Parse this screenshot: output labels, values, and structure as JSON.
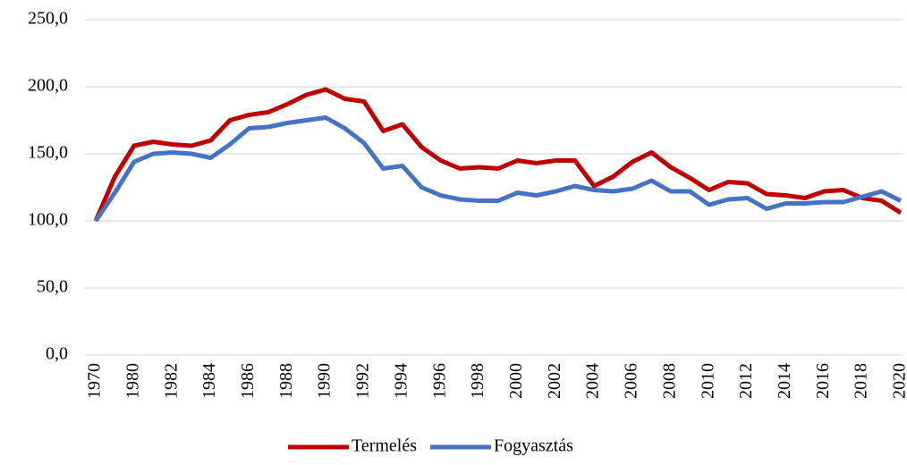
{
  "chart_data": {
    "type": "line",
    "categories": [
      "1970",
      null,
      "1980",
      null,
      "1982",
      null,
      "1984",
      null,
      "1986",
      null,
      "1988",
      null,
      "1990",
      null,
      "1992",
      null,
      "1994",
      null,
      "1996",
      null,
      "1998",
      null,
      "2000",
      null,
      "2002",
      null,
      "2004",
      null,
      "2006",
      null,
      "2008",
      null,
      "2010",
      null,
      "2012",
      null,
      "2014",
      null,
      "2016",
      null,
      "2018",
      null,
      "2020"
    ],
    "series": [
      {
        "name": "Termelés",
        "color": "#c00000",
        "values": [
          100,
          133,
          156,
          159,
          157,
          156,
          160,
          175,
          179,
          181,
          187,
          194,
          198,
          191,
          189,
          167,
          172,
          155,
          145,
          139,
          140,
          139,
          145,
          143,
          145,
          145,
          126,
          133,
          144,
          151,
          140,
          132,
          123,
          129,
          128,
          120,
          119,
          117,
          122,
          123,
          117,
          115,
          106
        ]
      },
      {
        "name": "Fogyasztás",
        "color": "#4472c4",
        "values": [
          100,
          121,
          144,
          150,
          151,
          150,
          147,
          157,
          169,
          170,
          173,
          175,
          177,
          169,
          158,
          139,
          141,
          125,
          119,
          116,
          115,
          115,
          121,
          119,
          122,
          126,
          123,
          122,
          124,
          130,
          122,
          122,
          112,
          116,
          117,
          109,
          113,
          113,
          114,
          114,
          118,
          122,
          115
        ]
      }
    ],
    "ylim": [
      0,
      250
    ],
    "yticks": [
      {
        "value": 0,
        "label": "0,0"
      },
      {
        "value": 50,
        "label": "50,0"
      },
      {
        "value": 100,
        "label": "100,0"
      },
      {
        "value": 150,
        "label": "150,0"
      },
      {
        "value": 200,
        "label": "200,0"
      },
      {
        "value": 250,
        "label": "250,0"
      }
    ],
    "grid": true,
    "legend": "bottom"
  }
}
